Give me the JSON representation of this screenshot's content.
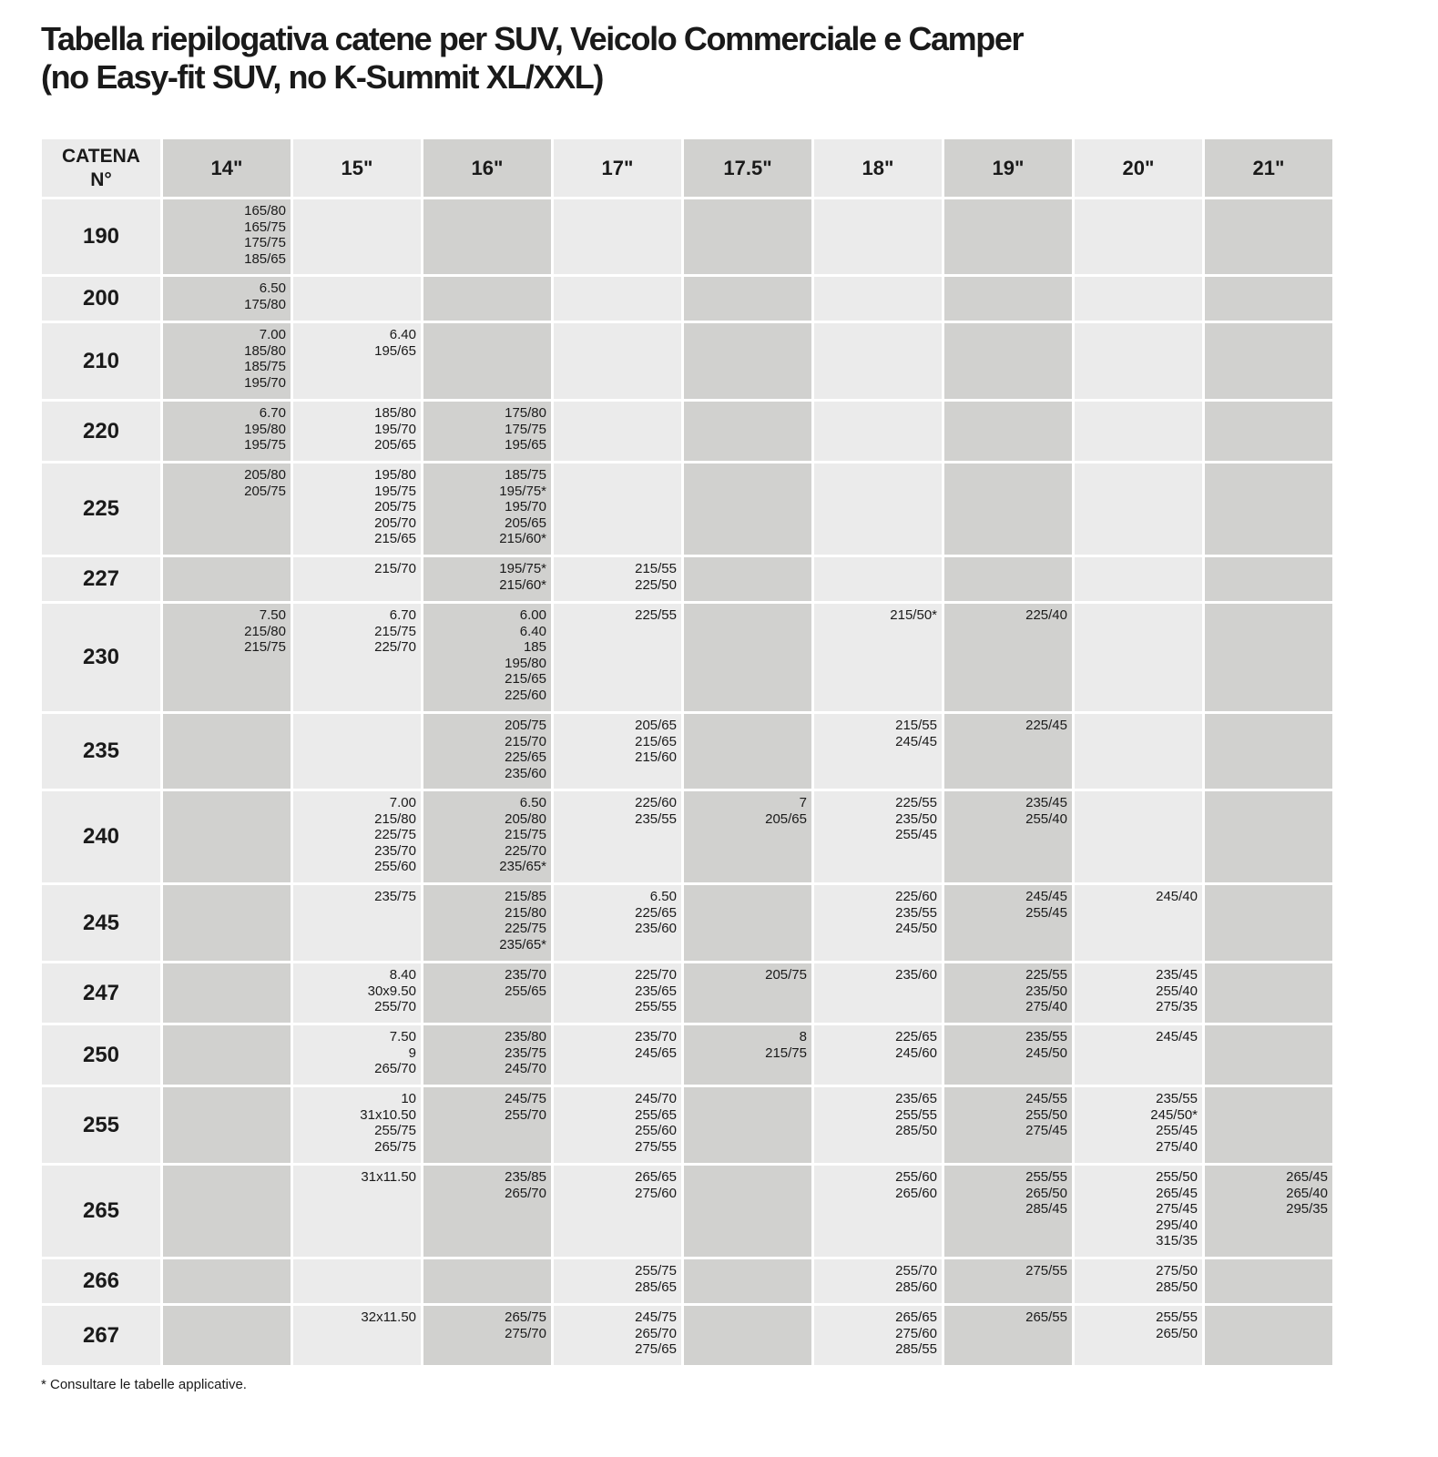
{
  "title": {
    "line1": "Tabella riepilogativa catene per SUV, Veicolo Commerciale e Camper",
    "line2": "(no Easy-fit SUV, no K-Summit XL/XXL)"
  },
  "table": {
    "header_first": [
      "CATENA",
      "N°"
    ],
    "columns": [
      "14\"",
      "15\"",
      "16\"",
      "17\"",
      "17.5\"",
      "18\"",
      "19\"",
      "20\"",
      "21\""
    ],
    "rows": [
      {
        "catena": "190",
        "cells": [
          [
            "165/80",
            "165/75",
            "175/75",
            "185/65"
          ],
          [],
          [],
          [],
          [],
          [],
          [],
          [],
          []
        ]
      },
      {
        "catena": "200",
        "cells": [
          [
            "6.50",
            "175/80"
          ],
          [],
          [],
          [],
          [],
          [],
          [],
          [],
          []
        ]
      },
      {
        "catena": "210",
        "cells": [
          [
            "7.00",
            "185/80",
            "185/75",
            "195/70"
          ],
          [
            "6.40",
            "195/65"
          ],
          [],
          [],
          [],
          [],
          [],
          [],
          []
        ]
      },
      {
        "catena": "220",
        "cells": [
          [
            "6.70",
            "195/80",
            "195/75"
          ],
          [
            "185/80",
            "195/70",
            "205/65"
          ],
          [
            "175/80",
            "175/75",
            "195/65"
          ],
          [],
          [],
          [],
          [],
          [],
          []
        ]
      },
      {
        "catena": "225",
        "cells": [
          [
            "205/80",
            "205/75"
          ],
          [
            "195/80",
            "195/75",
            "205/75",
            "205/70",
            "215/65"
          ],
          [
            "185/75",
            "195/75*",
            "195/70",
            "205/65",
            "215/60*"
          ],
          [],
          [],
          [],
          [],
          [],
          []
        ]
      },
      {
        "catena": "227",
        "cells": [
          [],
          [
            "215/70"
          ],
          [
            "195/75*",
            "215/60*"
          ],
          [
            "215/55",
            "225/50"
          ],
          [],
          [],
          [],
          [],
          []
        ]
      },
      {
        "catena": "230",
        "cells": [
          [
            "7.50",
            "215/80",
            "215/75"
          ],
          [
            "6.70",
            "215/75",
            "225/70"
          ],
          [
            "6.00",
            "6.40",
            "185",
            "195/80",
            "215/65",
            "225/60"
          ],
          [
            "225/55"
          ],
          [],
          [
            "215/50*"
          ],
          [
            "225/40"
          ],
          [],
          []
        ]
      },
      {
        "catena": "235",
        "cells": [
          [],
          [],
          [
            "205/75",
            "215/70",
            "225/65",
            "235/60"
          ],
          [
            "205/65",
            "215/65",
            "215/60"
          ],
          [],
          [
            "215/55",
            "245/45"
          ],
          [
            "225/45"
          ],
          [],
          []
        ]
      },
      {
        "catena": "240",
        "cells": [
          [],
          [
            "7.00",
            "215/80",
            "225/75",
            "235/70",
            "255/60"
          ],
          [
            "6.50",
            "205/80",
            "215/75",
            "225/70",
            "235/65*"
          ],
          [
            "225/60",
            "235/55"
          ],
          [
            "7",
            "205/65"
          ],
          [
            "225/55",
            "235/50",
            "255/45"
          ],
          [
            "235/45",
            "255/40"
          ],
          [],
          []
        ]
      },
      {
        "catena": "245",
        "cells": [
          [],
          [
            "235/75"
          ],
          [
            "215/85",
            "215/80",
            "225/75",
            "235/65*"
          ],
          [
            "6.50",
            "225/65",
            "235/60"
          ],
          [],
          [
            "225/60",
            "235/55",
            "245/50"
          ],
          [
            "245/45",
            "255/45"
          ],
          [
            "245/40"
          ],
          []
        ]
      },
      {
        "catena": "247",
        "cells": [
          [],
          [
            "8.40",
            "30x9.50",
            "255/70"
          ],
          [
            "235/70",
            "255/65"
          ],
          [
            "225/70",
            "235/65",
            "255/55"
          ],
          [
            "205/75"
          ],
          [
            "235/60"
          ],
          [
            "225/55",
            "235/50",
            "275/40"
          ],
          [
            "235/45",
            "255/40",
            "275/35"
          ],
          []
        ]
      },
      {
        "catena": "250",
        "cells": [
          [],
          [
            "7.50",
            "9",
            "265/70"
          ],
          [
            "235/80",
            "235/75",
            "245/70"
          ],
          [
            "235/70",
            "245/65"
          ],
          [
            "8",
            "215/75"
          ],
          [
            "225/65",
            "245/60"
          ],
          [
            "235/55",
            "245/50"
          ],
          [
            "245/45"
          ],
          []
        ]
      },
      {
        "catena": "255",
        "cells": [
          [],
          [
            "10",
            "31x10.50",
            "255/75",
            "265/75"
          ],
          [
            "245/75",
            "255/70"
          ],
          [
            "245/70",
            "255/65",
            "255/60",
            "275/55"
          ],
          [],
          [
            "235/65",
            "255/55",
            "285/50"
          ],
          [
            "245/55",
            "255/50",
            "275/45"
          ],
          [
            "235/55",
            "245/50*",
            "255/45",
            "275/40"
          ],
          []
        ]
      },
      {
        "catena": "265",
        "cells": [
          [],
          [
            "31x11.50"
          ],
          [
            "235/85",
            "265/70"
          ],
          [
            "265/65",
            "275/60"
          ],
          [],
          [
            "255/60",
            "265/60"
          ],
          [
            "255/55",
            "265/50",
            "285/45"
          ],
          [
            "255/50",
            "265/45",
            "275/45",
            "295/40",
            "315/35"
          ],
          [
            "265/45",
            "265/40",
            "295/35"
          ]
        ]
      },
      {
        "catena": "266",
        "cells": [
          [],
          [],
          [],
          [
            "255/75",
            "285/65"
          ],
          [],
          [
            "255/70",
            "285/60"
          ],
          [
            "275/55"
          ],
          [
            "275/50",
            "285/50"
          ],
          []
        ]
      },
      {
        "catena": "267",
        "cells": [
          [],
          [
            "32x11.50"
          ],
          [
            "265/75",
            "275/70"
          ],
          [
            "245/75",
            "265/70",
            "275/65"
          ],
          [],
          [
            "265/65",
            "275/60",
            "285/55"
          ],
          [
            "265/55"
          ],
          [
            "255/55",
            "265/50"
          ],
          []
        ]
      }
    ]
  },
  "footnote": "* Consultare le tabelle applicative.",
  "colors": {
    "light_cell": "#ebebeb",
    "dark_cell": "#d1d1cf",
    "text": "#1a1a1a"
  }
}
